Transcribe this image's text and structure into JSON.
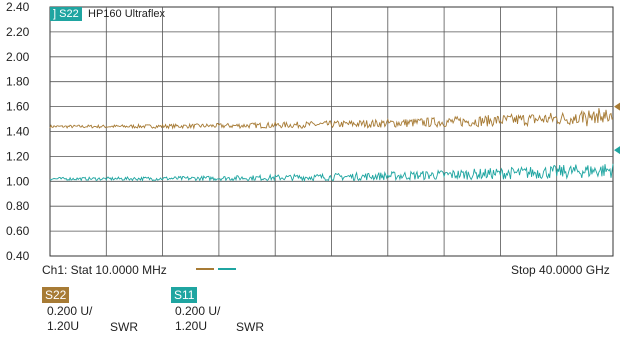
{
  "chart_data": {
    "type": "line",
    "ylim": [
      0.4,
      2.4
    ],
    "yticks": [
      "2.40",
      "2.20",
      "2.00",
      "1.80",
      "1.60",
      "1.40",
      "1.20",
      "1.00",
      "0.80",
      "0.60",
      "0.40"
    ],
    "xlim": [
      10,
      40000
    ],
    "x_unit": "MHz",
    "grid": true,
    "trace_id_label": "HP160 Ultraflex",
    "trace_id_badge": "] S22",
    "series": [
      {
        "name": "S22",
        "color": "#a77b35",
        "mean": 1.45,
        "start": 1.44,
        "end": 1.52
      },
      {
        "name": "S11",
        "color": "#1fa5a1",
        "mean": 1.03,
        "start": 1.02,
        "end": 1.09
      }
    ]
  },
  "footer": {
    "channel_start": "Ch1: Stat 10.0000 MHz",
    "stop": "Stop 40.0000 GHz"
  },
  "legend": [
    {
      "name": "S22",
      "color": "#a77b35",
      "scale": "0.200 U/",
      "ref": "1.20U",
      "format": "SWR"
    },
    {
      "name": "S11",
      "color": "#1fa5a1",
      "scale": "0.200 U/",
      "ref": "1.20U",
      "format": "SWR"
    }
  ]
}
